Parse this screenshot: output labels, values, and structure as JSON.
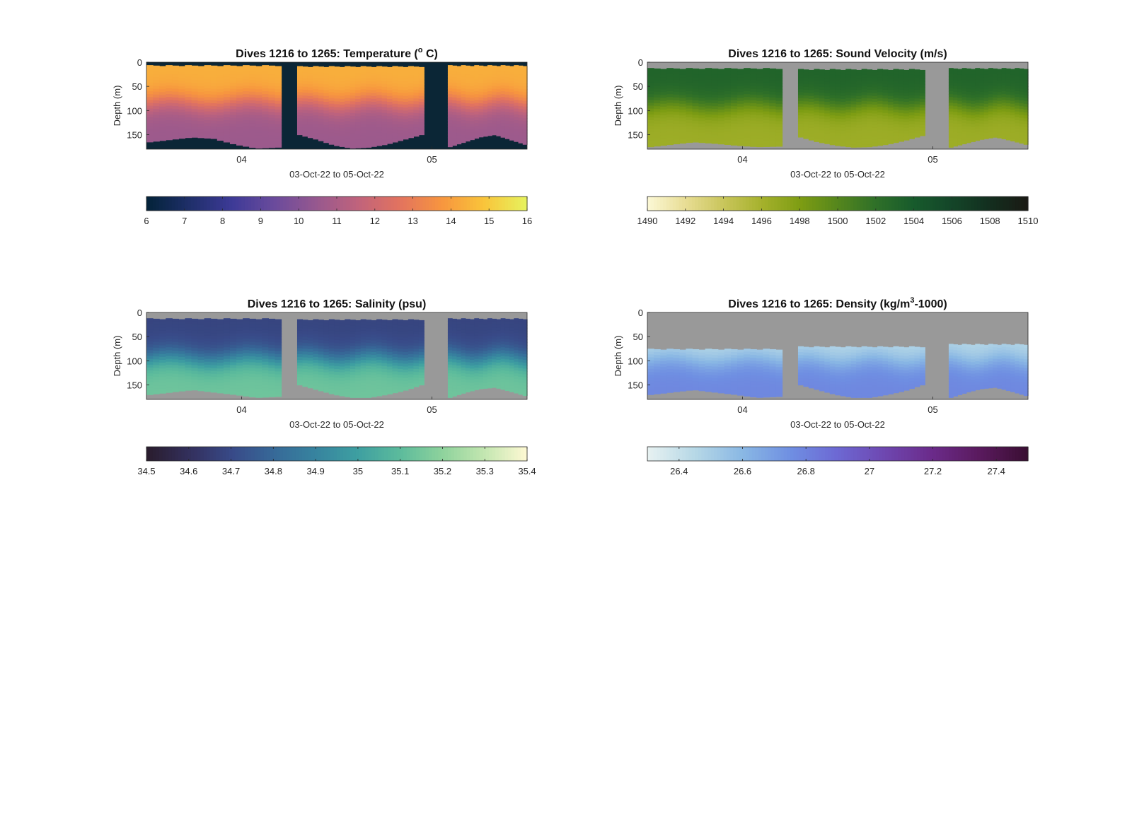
{
  "chart_data": [
    {
      "type": "heatmap",
      "title": "Dives 1216 to 1265: Temperature (",
      "title_sup": "o",
      "title_tail": " C)",
      "ylabel": "Depth (m)",
      "xlabel": "03-Oct-22 to 05-Oct-22",
      "x_ticks": [
        "04",
        "05"
      ],
      "y_ticks": [
        "0",
        "50",
        "100",
        "150"
      ],
      "ylim": [
        0,
        180
      ],
      "background_color": "#0b2636",
      "colorbar": {
        "range": [
          6,
          16
        ],
        "ticks": [
          "6",
          "7",
          "8",
          "9",
          "10",
          "11",
          "12",
          "13",
          "14",
          "15",
          "16"
        ],
        "colors": [
          "#04233a",
          "#1f2f6a",
          "#3d3a97",
          "#6a4b9c",
          "#96588f",
          "#c0637c",
          "#e2735f",
          "#f7953f",
          "#f9c43a",
          "#e7f15d"
        ]
      },
      "surface_value": 14.4,
      "thermocline_m": 85,
      "deep_value": 10.6,
      "bands": [
        {
          "x_range": [
            "03-Oct-22 12:00",
            "04-Oct-22 05:00"
          ],
          "top_m": 6,
          "bottom_m": [
            165,
            160,
            155,
            158,
            170,
            178,
            176
          ]
        },
        {
          "x_range": [
            "04-Oct-22 07:00",
            "04-Oct-22 23:00"
          ],
          "top_m": 8,
          "bottom_m": [
            150,
            160,
            172,
            178,
            176,
            170,
            160,
            150
          ]
        },
        {
          "x_range": [
            "05-Oct-22 02:00",
            "05-Oct-22 12:00"
          ],
          "top_m": 6,
          "bottom_m": [
            175,
            165,
            155,
            150,
            160,
            170
          ]
        }
      ]
    },
    {
      "type": "heatmap",
      "title": "Dives 1216 to 1265: Sound Velocity (m/s)",
      "title_sup": "",
      "title_tail": "",
      "ylabel": "Depth (m)",
      "xlabel": "03-Oct-22 to 05-Oct-22",
      "x_ticks": [
        "04",
        "05"
      ],
      "y_ticks": [
        "0",
        "50",
        "100",
        "150"
      ],
      "ylim": [
        0,
        180
      ],
      "background_color": "#999999",
      "colorbar": {
        "range": [
          1490,
          1510
        ],
        "ticks": [
          "1490",
          "1492",
          "1494",
          "1496",
          "1498",
          "1500",
          "1502",
          "1504",
          "1506",
          "1508",
          "1510"
        ],
        "colors": [
          "#fbf7d3",
          "#e7dc92",
          "#c8c55a",
          "#a5b12c",
          "#7e9d13",
          "#55861c",
          "#2f7028",
          "#175b2c",
          "#144629",
          "#132f1f",
          "#1a1a14"
        ]
      },
      "surface_value": 1503.2,
      "thermocline_m": 90,
      "deep_value": 1496.4,
      "bands": [
        {
          "x_range": [
            "03-Oct-22 12:00",
            "04-Oct-22 05:00"
          ],
          "top_m": 12,
          "bottom_m": [
            175,
            170,
            165,
            168,
            172,
            175,
            174
          ]
        },
        {
          "x_range": [
            "04-Oct-22 07:00",
            "04-Oct-22 23:00"
          ],
          "top_m": 14,
          "bottom_m": [
            155,
            165,
            172,
            176,
            175,
            170,
            162,
            152
          ]
        },
        {
          "x_range": [
            "05-Oct-22 02:00",
            "05-Oct-22 12:00"
          ],
          "top_m": 12,
          "bottom_m": [
            176,
            168,
            160,
            155,
            162,
            170
          ]
        }
      ]
    },
    {
      "type": "heatmap",
      "title": "Dives 1216 to 1265: Salinity (psu)",
      "title_sup": "",
      "title_tail": "",
      "ylabel": "Depth (m)",
      "xlabel": "03-Oct-22 to 05-Oct-22",
      "x_ticks": [
        "04",
        "05"
      ],
      "y_ticks": [
        "0",
        "50",
        "100",
        "150"
      ],
      "ylim": [
        0,
        180
      ],
      "background_color": "#999999",
      "colorbar": {
        "range": [
          34.5,
          35.4
        ],
        "ticks": [
          "34.5",
          "34.6",
          "34.7",
          "34.8",
          "34.9",
          "35",
          "35.1",
          "35.2",
          "35.3",
          "35.4"
        ],
        "colors": [
          "#2a1d2e",
          "#33305d",
          "#384a88",
          "#376998",
          "#37849f",
          "#3e9fa1",
          "#5cbb9c",
          "#8dd29c",
          "#c2e6b0",
          "#fcf8d2"
        ]
      },
      "surface_value": 34.68,
      "thermocline_m": 95,
      "deep_value": 35.14,
      "bands": [
        {
          "x_range": [
            "03-Oct-22 12:00",
            "04-Oct-22 05:00"
          ],
          "top_m": 12,
          "bottom_m": [
            170,
            165,
            160,
            165,
            170,
            176,
            174
          ]
        },
        {
          "x_range": [
            "04-Oct-22 07:00",
            "04-Oct-22 23:00"
          ],
          "top_m": 14,
          "bottom_m": [
            150,
            160,
            170,
            176,
            176,
            170,
            162,
            150
          ]
        },
        {
          "x_range": [
            "05-Oct-22 02:00",
            "05-Oct-22 12:00"
          ],
          "top_m": 12,
          "bottom_m": [
            176,
            166,
            158,
            155,
            163,
            172
          ]
        }
      ]
    },
    {
      "type": "heatmap",
      "title": "Dives 1216 to 1265: Density (kg/m",
      "title_sup": "3",
      "title_tail": "-1000)",
      "ylabel": "Depth (m)",
      "xlabel": "03-Oct-22 to 05-Oct-22",
      "x_ticks": [
        "04",
        "05"
      ],
      "y_ticks": [
        "0",
        "50",
        "100",
        "150"
      ],
      "ylim": [
        0,
        180
      ],
      "background_color": "#999999",
      "colorbar": {
        "range": [
          26.3,
          27.5
        ],
        "ticks": [
          "26.4",
          "26.6",
          "26.8",
          "27",
          "27.2",
          "27.4"
        ],
        "colors": [
          "#e6f1f1",
          "#b5d7e6",
          "#89b7e4",
          "#6f8fe2",
          "#6d68d3",
          "#6e47b0",
          "#6b2b8a",
          "#5a1a5e",
          "#3b0f34"
        ]
      },
      "surface_value": 26.45,
      "thermocline_m": 100,
      "deep_value": 26.78,
      "bands": [
        {
          "x_range": [
            "03-Oct-22 12:00",
            "04-Oct-22 05:00"
          ],
          "top_m": 75,
          "bottom_m": [
            170,
            165,
            160,
            165,
            170,
            176,
            174
          ]
        },
        {
          "x_range": [
            "04-Oct-22 07:00",
            "04-Oct-22 23:00"
          ],
          "top_m": 70,
          "bottom_m": [
            150,
            160,
            170,
            176,
            176,
            170,
            162,
            150
          ]
        },
        {
          "x_range": [
            "05-Oct-22 02:00",
            "05-Oct-22 12:00"
          ],
          "top_m": 65,
          "bottom_m": [
            176,
            166,
            158,
            155,
            163,
            172
          ]
        }
      ]
    }
  ]
}
